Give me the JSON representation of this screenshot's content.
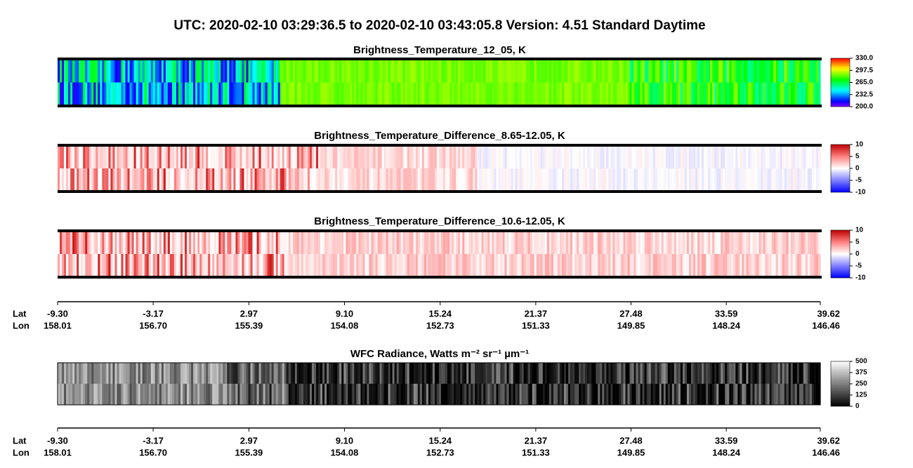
{
  "title": "UTC:  2020-02-10   03:29:36.5  to  2020-02-10   03:43:05.8    Version: 4.51  Standard Daytime",
  "chart_data": [
    {
      "type": "image",
      "title": "Brightness_Temperature_12_05, K",
      "colormap": "rainbow",
      "clim": [
        200,
        330
      ],
      "cticks": [
        {
          "value": 200,
          "label": "200.0"
        },
        232.5,
        {
          "value": 265,
          "label": "265.0"
        },
        297.5,
        {
          "value": 330,
          "label": "330.0"
        }
      ]
    },
    {
      "type": "image",
      "title": "Brightness_Temperature_Difference_8.65-12.05, K",
      "colormap": "bwr",
      "clim": [
        -10,
        10
      ],
      "cticks": [
        -10,
        -5,
        0,
        5,
        10
      ]
    },
    {
      "type": "image",
      "title": "Brightness_Temperature_Difference_10.6-12.05, K",
      "colormap": "bwr",
      "clim": [
        -10,
        10
      ],
      "cticks": [
        -10,
        -5,
        0,
        5,
        10
      ]
    },
    {
      "type": "image",
      "title": "WFC Radiance, Watts m⁻² sr⁻¹ µm⁻¹",
      "colormap": "gray",
      "clim": [
        0,
        500
      ],
      "cticks": [
        0,
        125,
        250,
        375,
        500
      ]
    }
  ],
  "track_axis": {
    "labels": [
      "Lat",
      "Lon"
    ],
    "xlim": [
      -9.3,
      39.62
    ],
    "xticks": [
      {
        "value": -9.3,
        "label": "-9.30"
      },
      -3.17,
      2.97,
      {
        "value": 9.1,
        "label": "9.10"
      },
      15.24,
      21.37,
      27.48,
      33.59,
      39.62
    ],
    "lon": [
      158.01,
      {
        "value": 156.7,
        "label": "156.70"
      },
      155.39,
      154.08,
      152.73,
      151.33,
      149.85,
      148.24,
      146.46
    ]
  }
}
